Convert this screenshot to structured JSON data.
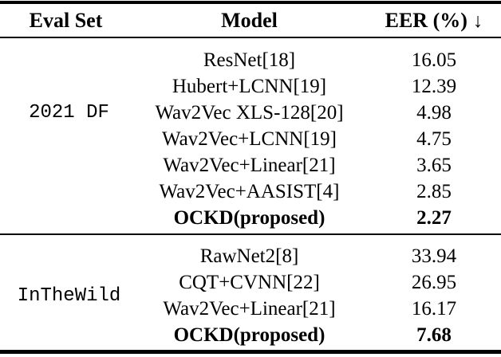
{
  "colors": {
    "background": "#ffffff",
    "text": "#000000",
    "rule": "#000000"
  },
  "table": {
    "header": {
      "eval_set": "Eval Set",
      "model": "Model",
      "eer": "EER (%)",
      "down_arrow": "↓"
    },
    "sections": [
      {
        "eval_set": "2021 DF",
        "rows": [
          {
            "model": "ResNet[18]",
            "eer": "16.05"
          },
          {
            "model": "Hubert+LCNN[19]",
            "eer": "12.39"
          },
          {
            "model": "Wav2Vec XLS-128[20]",
            "eer": "4.98"
          },
          {
            "model": "Wav2Vec+LCNN[19]",
            "eer": "4.75"
          },
          {
            "model": "Wav2Vec+Linear[21]",
            "eer": "3.65"
          },
          {
            "model": "Wav2Vec+AASIST[4]",
            "eer": "2.85"
          },
          {
            "model": "OCKD(proposed)",
            "eer": "2.27"
          }
        ]
      },
      {
        "eval_set": "InTheWild",
        "rows": [
          {
            "model": "RawNet2[8]",
            "eer": "33.94"
          },
          {
            "model": "CQT+CVNN[22]",
            "eer": "26.95"
          },
          {
            "model": "Wav2Vec+Linear[21]",
            "eer": "16.17"
          },
          {
            "model": "OCKD(proposed)",
            "eer": "7.68"
          }
        ]
      }
    ]
  }
}
